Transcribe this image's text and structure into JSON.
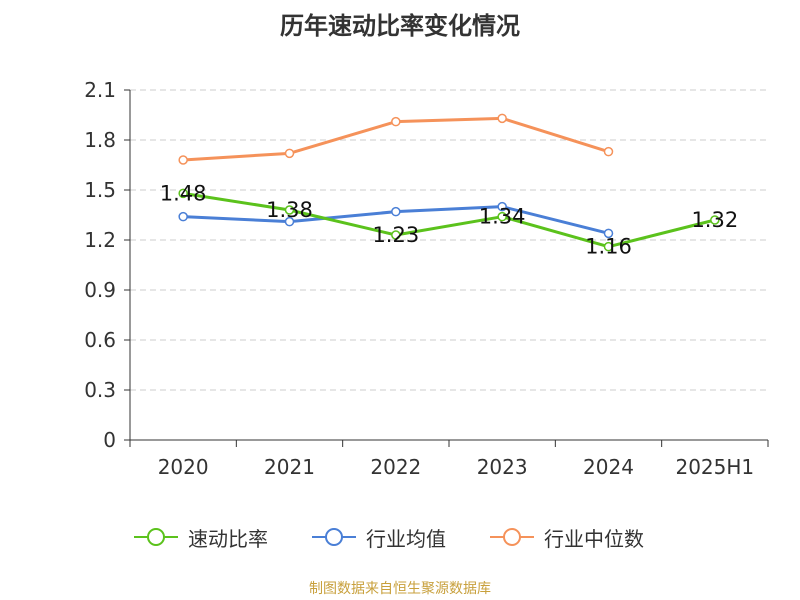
{
  "title": "历年速动比率变化情况",
  "source": "制图数据来自恒生聚源数据库",
  "colors": {
    "quick_ratio": "#5bc21c",
    "industry_mean": "#4a7fd6",
    "industry_median": "#f5925a",
    "axis": "#333333",
    "grid": "#cccccc"
  },
  "legend": [
    {
      "label": "速动比率",
      "color_key": "quick_ratio"
    },
    {
      "label": "行业均值",
      "color_key": "industry_mean"
    },
    {
      "label": "行业中位数",
      "color_key": "industry_median"
    }
  ],
  "chart_data": {
    "type": "line",
    "title": "历年速动比率变化情况",
    "categories": [
      "2020",
      "2021",
      "2022",
      "2023",
      "2024",
      "2025H1"
    ],
    "ylim": [
      0,
      2.1
    ],
    "yticks": [
      "0",
      "0.3",
      "0.6",
      "0.9",
      "1.2",
      "1.5",
      "1.8",
      "2.1"
    ],
    "grid": true,
    "legend_position": "bottom",
    "series": [
      {
        "name": "速动比率",
        "color_key": "quick_ratio",
        "values": [
          1.48,
          1.38,
          1.23,
          1.34,
          1.16,
          1.32
        ],
        "labels": [
          "1.48",
          "1.38",
          "1.23",
          "1.34",
          "1.16",
          "1.32"
        ]
      },
      {
        "name": "行业均值",
        "color_key": "industry_mean",
        "values": [
          1.34,
          1.31,
          1.37,
          1.4,
          1.24,
          null
        ]
      },
      {
        "name": "行业中位数",
        "color_key": "industry_median",
        "values": [
          1.68,
          1.72,
          1.91,
          1.93,
          1.73,
          null
        ]
      }
    ]
  }
}
